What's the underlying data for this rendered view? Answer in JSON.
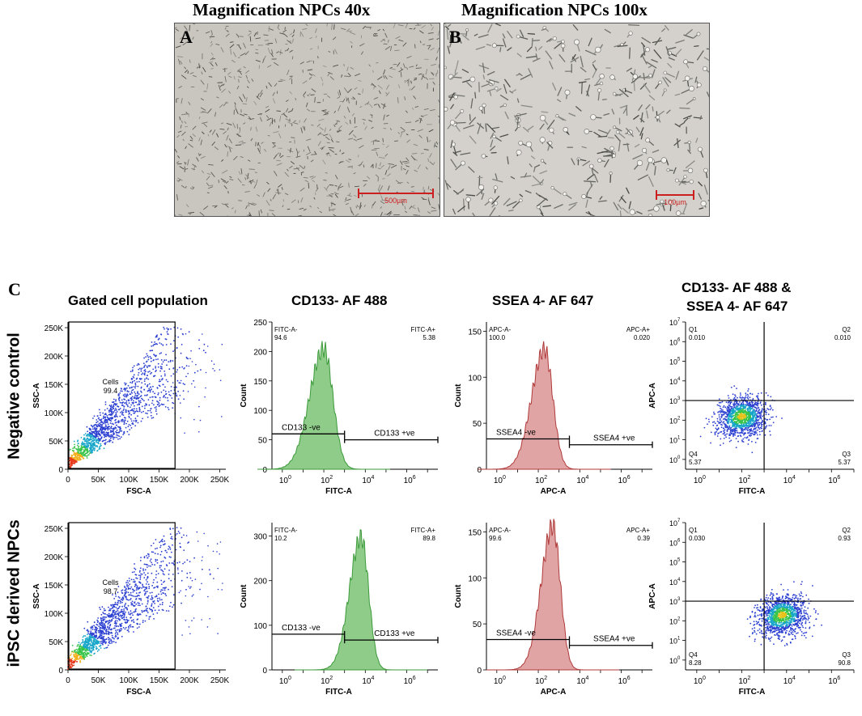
{
  "panel_a": {
    "letter": "A",
    "title": "Magnification NPCs 40x",
    "scale_bar": "500µm"
  },
  "panel_b": {
    "letter": "B",
    "title": "Magnification NPCs 100x",
    "scale_bar": "100µm"
  },
  "panel_c": {
    "letter": "C",
    "column_titles": [
      "Gated cell population",
      "CD133- AF 488",
      "SSEA 4- AF 647",
      "CD133- AF 488 &",
      "SSEA 4- AF 647"
    ],
    "row_labels": [
      "Negative control",
      "iPSC derived NPCs"
    ]
  },
  "colors": {
    "green_fill": "#8fcc8a",
    "green_line": "#3c9a3a",
    "red_fill": "#e0a4a4",
    "red_line": "#b03a3a",
    "scale_bar": "#cc1f1f"
  },
  "chart_data": [
    {
      "type": "scatter",
      "name": "gate-negative-control",
      "xlabel": "FSC-A",
      "ylabel": "SSC-A",
      "xticks": [
        "0",
        "50K",
        "100K",
        "150K",
        "200K",
        "250K"
      ],
      "yticks": [
        "0",
        "50K",
        "100K",
        "150K",
        "200K",
        "250K"
      ],
      "xlim": [
        0,
        260000
      ],
      "ylim": [
        0,
        260000
      ],
      "gate": {
        "label": "Cells",
        "value": "99.4",
        "x_range": [
          0,
          175000
        ],
        "y_range": [
          0,
          260000
        ]
      }
    },
    {
      "type": "histogram",
      "name": "cd133-negative-control",
      "xlabel": "FITC-A",
      "ylabel": "Count",
      "yticks": [
        "0",
        "50",
        "100",
        "150",
        "200",
        "250"
      ],
      "ylim": [
        0,
        250
      ],
      "xlim_log": [
        -0.5,
        7.5
      ],
      "peak_log": 2.0,
      "peak_count": 220,
      "spread": 0.55,
      "gate_left_label": "FITC-A-",
      "gate_left_value": "94.6",
      "gate_right_label": "FITC-A+",
      "gate_right_value": "5.38",
      "neg_label": "CD133 -ve",
      "pos_label": "CD133 +ve",
      "split_log": 3.0,
      "gate_level": 60
    },
    {
      "type": "histogram",
      "name": "ssea4-negative-control",
      "xlabel": "APC-A",
      "ylabel": "Count",
      "yticks": [
        "0",
        "50",
        "100",
        "150"
      ],
      "ylim": [
        0,
        160
      ],
      "xlim_log": [
        -0.5,
        7.5
      ],
      "peak_log": 2.3,
      "peak_count": 140,
      "spread": 0.5,
      "gate_left_label": "APC-A-",
      "gate_left_value": "100.0",
      "gate_right_label": "APC-A+",
      "gate_right_value": "0.020",
      "neg_label": "SSEA4 -ve",
      "pos_label": "SSEA4 +ve",
      "split_log": 3.5,
      "gate_level": 33
    },
    {
      "type": "scatter",
      "name": "quad-negative-control",
      "xlabel": "FITC-A",
      "ylabel": "APC-A",
      "xlim_log": [
        -0.5,
        7
      ],
      "ylim_log": [
        -0.5,
        7
      ],
      "split_x_log": 3.0,
      "split_y_log": 3.0,
      "quadrants": {
        "Q1": "0.010",
        "Q2": "0.010",
        "Q3": "5.37",
        "Q4": "5.37"
      },
      "cluster_x_log": 2.0,
      "cluster_y_log": 2.2
    },
    {
      "type": "scatter",
      "name": "gate-npcs",
      "xlabel": "FSC-A",
      "ylabel": "SSC-A",
      "xticks": [
        "0",
        "50K",
        "100K",
        "150K",
        "200K",
        "250K"
      ],
      "yticks": [
        "0",
        "50K",
        "100K",
        "150K",
        "200K",
        "250K"
      ],
      "xlim": [
        0,
        260000
      ],
      "ylim": [
        0,
        260000
      ],
      "gate": {
        "label": "Cells",
        "value": "98.7",
        "x_range": [
          0,
          175000
        ],
        "y_range": [
          0,
          260000
        ]
      }
    },
    {
      "type": "histogram",
      "name": "cd133-npcs",
      "xlabel": "FITC-A",
      "ylabel": "Count",
      "yticks": [
        "0",
        "100",
        "200",
        "300"
      ],
      "ylim": [
        0,
        330
      ],
      "xlim_log": [
        -0.5,
        7.5
      ],
      "peak_log": 3.8,
      "peak_count": 320,
      "spread": 0.45,
      "gate_left_label": "FITC-A-",
      "gate_left_value": "10.2",
      "gate_right_label": "FITC-A+",
      "gate_right_value": "89.8",
      "neg_label": "CD133 -ve",
      "pos_label": "CD133 +ve",
      "split_log": 3.0,
      "gate_level": 80
    },
    {
      "type": "histogram",
      "name": "ssea4-npcs",
      "xlabel": "APC-A",
      "ylabel": "Count",
      "yticks": [
        "0",
        "50",
        "100",
        "150"
      ],
      "ylim": [
        0,
        160
      ],
      "xlim_log": [
        -0.5,
        7.5
      ],
      "peak_log": 2.7,
      "peak_count": 168,
      "spread": 0.45,
      "gate_left_label": "APC-A-",
      "gate_left_value": "99.6",
      "gate_right_label": "APC-A+",
      "gate_right_value": "0.39",
      "neg_label": "SSEA4 -ve",
      "pos_label": "SSEA4 +ve",
      "split_log": 3.5,
      "gate_level": 33
    },
    {
      "type": "scatter",
      "name": "quad-npcs",
      "xlabel": "FITC-A",
      "ylabel": "APC-A",
      "xlim_log": [
        -0.5,
        7
      ],
      "ylim_log": [
        -0.5,
        7
      ],
      "split_x_log": 3.0,
      "split_y_log": 3.0,
      "quadrants": {
        "Q1": "0.030",
        "Q2": "0.93",
        "Q3": "90.8",
        "Q4": "8.28"
      },
      "cluster_x_log": 3.8,
      "cluster_y_log": 2.3
    }
  ]
}
